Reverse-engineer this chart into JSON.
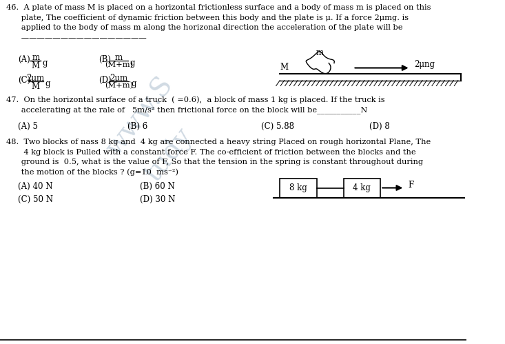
{
  "bg_color": "#ffffff",
  "text_color": "#000000",
  "fig_width": 7.33,
  "fig_height": 4.99,
  "watermark_color": "#aabccc",
  "q46_line1": "46.  A plate of mass M is placed on a horizontal frictionless surface and a body of mass m is placed on this",
  "q46_line2": "      plate, The coefficient of dynamic friction between this body and the plate is μ. If a force 2μmg. is",
  "q46_line3": "      applied to the body of mass m along the horizonal direction the acceleration of the plate will be",
  "q46_blank": "      ————————————————",
  "q47_line1": "47.  On the horizontal surface of a truck  ( =0.6),  a block of mass 1 kg is placed. If the truck is",
  "q47_line2": "      accelerating at the rale of   5m/s² then frictional force on the block will be___________N",
  "q47_optA": "(A) 5",
  "q47_optB": "(B) 6",
  "q47_optC": "(C) 5.88",
  "q47_optD": "(D) 8",
  "q48_line1": "48.  Two blocks of nass 8 kg and  4 kg are connected a heavy string Placed on rough horizontal Plane, The",
  "q48_line2": "       4 kg block is Pulled with a constant force F. The co-efficient of friction between the blocks and the",
  "q48_line3": "      ground is  0.5, what is the value of F, So that the tension in the spring is constant throughout during",
  "q48_line4": "      the motion of the blocks ? (g=10  ms⁻²)",
  "q48_optA": "(A) 40 N",
  "q48_optB": "(B) 60 N",
  "q48_optC": "(C) 50 N",
  "q48_optD": "(D) 30 N"
}
